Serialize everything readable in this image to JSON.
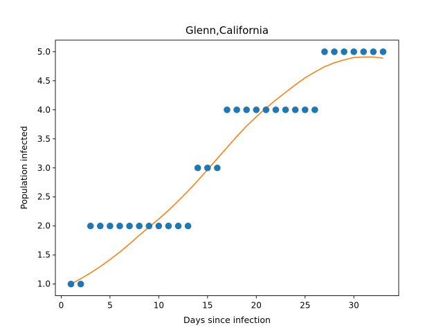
{
  "chart_data": {
    "type": "scatter",
    "title": "Glenn,California",
    "xlabel": "Days since infection",
    "ylabel": "Population infected",
    "xlim": [
      -0.6,
      34.6
    ],
    "ylim": [
      0.8,
      5.2
    ],
    "x_ticks": [
      0,
      5,
      10,
      15,
      20,
      25,
      30
    ],
    "x_tick_labels": [
      "0",
      "5",
      "10",
      "15",
      "20",
      "25",
      "30"
    ],
    "y_ticks": [
      1.0,
      1.5,
      2.0,
      2.5,
      3.0,
      3.5,
      4.0,
      4.5,
      5.0
    ],
    "y_tick_labels": [
      "1.0",
      "1.5",
      "2.0",
      "2.5",
      "3.0",
      "3.5",
      "4.0",
      "4.5",
      "5.0"
    ],
    "grid": false,
    "series": [
      {
        "kind": "scatter",
        "color": "#1f77b4",
        "x": [
          1,
          2,
          3,
          4,
          5,
          6,
          7,
          8,
          9,
          10,
          11,
          12,
          13,
          14,
          15,
          16,
          17,
          18,
          19,
          20,
          21,
          22,
          23,
          24,
          25,
          26,
          27,
          28,
          29,
          30,
          31,
          32,
          33
        ],
        "y": [
          1,
          1,
          2,
          2,
          2,
          2,
          2,
          2,
          2,
          2,
          2,
          2,
          2,
          3,
          3,
          3,
          4,
          4,
          4,
          4,
          4,
          4,
          4,
          4,
          4,
          4,
          5,
          5,
          5,
          5,
          5,
          5,
          5
        ]
      },
      {
        "kind": "line",
        "color": "#ff7f0e",
        "x": [
          1,
          2,
          3,
          4,
          5,
          6,
          7,
          8,
          9,
          10,
          11,
          12,
          13,
          14,
          15,
          16,
          17,
          18,
          19,
          20,
          21,
          22,
          23,
          24,
          25,
          26,
          27,
          28,
          29,
          30,
          31,
          32,
          33
        ],
        "y": [
          1.0,
          1.09,
          1.19,
          1.3,
          1.42,
          1.55,
          1.69,
          1.84,
          1.98,
          2.12,
          2.27,
          2.43,
          2.6,
          2.78,
          2.97,
          3.16,
          3.35,
          3.54,
          3.72,
          3.88,
          4.03,
          4.17,
          4.3,
          4.43,
          4.55,
          4.65,
          4.74,
          4.81,
          4.86,
          4.9,
          4.91,
          4.91,
          4.89
        ]
      }
    ]
  }
}
